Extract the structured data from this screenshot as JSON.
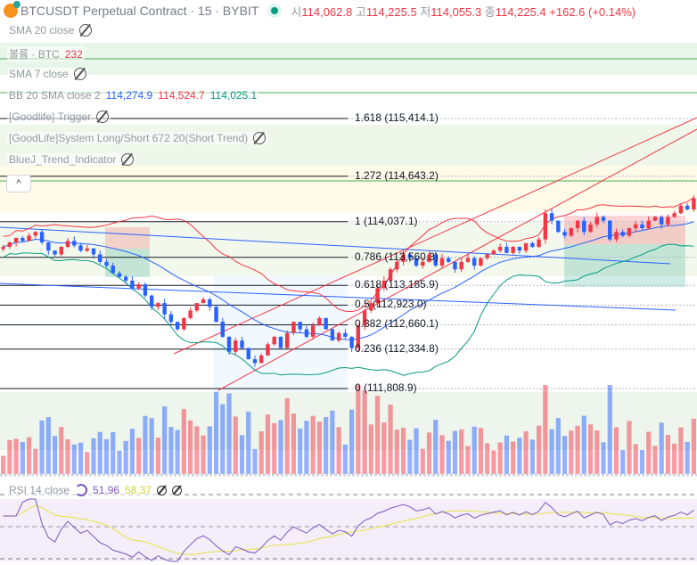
{
  "header": {
    "title": "BTCUSDT Perpetual Contract · 15 · BYBIT",
    "open_label": "시",
    "open": "114,062.8",
    "high_label": "고",
    "high": "114,225.5",
    "low_label": "저",
    "low": "114,055.3",
    "close_label": "종",
    "close": "114,225.4",
    "change": "+162.6 (+0.14%)"
  },
  "indicators": [
    {
      "label": "SMA 20 close"
    },
    {
      "label": "볼륨 · BTC",
      "value": "232"
    },
    {
      "label": "SMA 7 close"
    },
    {
      "label": "BB 20 SMA close 2",
      "values": [
        "114,274.9",
        "114,524.7",
        "114,025.1"
      ]
    },
    {
      "label": "[Goodlife] Trigger"
    },
    {
      "label": "[GoodLife]System Long/Short 672 20(Short Trend)"
    },
    {
      "label": "BlueJ_Trend_Indicator"
    }
  ],
  "collapse_button": "^",
  "fib_levels": [
    {
      "label": "1.618 (115,414.1)",
      "price": 115414.1
    },
    {
      "label": "1.272 (114,643.2)",
      "price": 114643.2
    },
    {
      "label": "1 (114,037.1)",
      "price": 114037.1
    },
    {
      "label": "0.786 (113,560.3)",
      "price": 113560.3
    },
    {
      "label": "0.618 (113,185.9)",
      "price": 113185.9
    },
    {
      "label": "0.5 (112,923.0)",
      "price": 112923.0
    },
    {
      "label": "0.382 (112,660.1)",
      "price": 112660.1
    },
    {
      "label": "0.236 (112,334.8)",
      "price": 112334.8
    },
    {
      "label": "0 (111,808.9)",
      "price": 111808.9
    }
  ],
  "rsi": {
    "label": "RSI 14 close",
    "value": "51.96",
    "ma": "58.37"
  },
  "colors": {
    "up": "#f23645",
    "down": "#2962ff",
    "bb_upper": "#f23645",
    "bb_lower": "#089981",
    "bb_basis": "#2962ff",
    "rsi": "#7e57c2",
    "rsi_ma": "#e6e65a"
  },
  "chart_data": {
    "type": "candlestick",
    "closes": [
      113700,
      113760,
      113820,
      113780,
      113850,
      113900,
      113760,
      113650,
      113600,
      113700,
      113780,
      113720,
      113650,
      113680,
      113600,
      113500,
      113450,
      113350,
      113300,
      113250,
      113150,
      113200,
      113050,
      112900,
      112950,
      112800,
      112700,
      112600,
      112750,
      112850,
      112950,
      113000,
      112900,
      112700,
      112500,
      112300,
      112450,
      112350,
      112200,
      112150,
      112250,
      112400,
      112500,
      112350,
      112550,
      112700,
      112600,
      112500,
      112650,
      112750,
      112600,
      112450,
      112550,
      112500,
      112350,
      112650,
      112850,
      112950,
      113150,
      113250,
      113400,
      113500,
      113600,
      113550,
      113450,
      113500,
      113600,
      113450,
      113550,
      113500,
      113400,
      113500,
      113550,
      113450,
      113550,
      113600,
      113650,
      113700,
      113620,
      113700,
      113650,
      113750,
      113700,
      113800,
      114150,
      114050,
      113900,
      113850,
      113950,
      114050,
      113900,
      114000,
      114100,
      114050,
      113800,
      113900,
      113850,
      113950,
      114000,
      113950,
      114050,
      114100,
      114000,
      114100,
      114150,
      114250,
      114200,
      114350
    ]
  }
}
